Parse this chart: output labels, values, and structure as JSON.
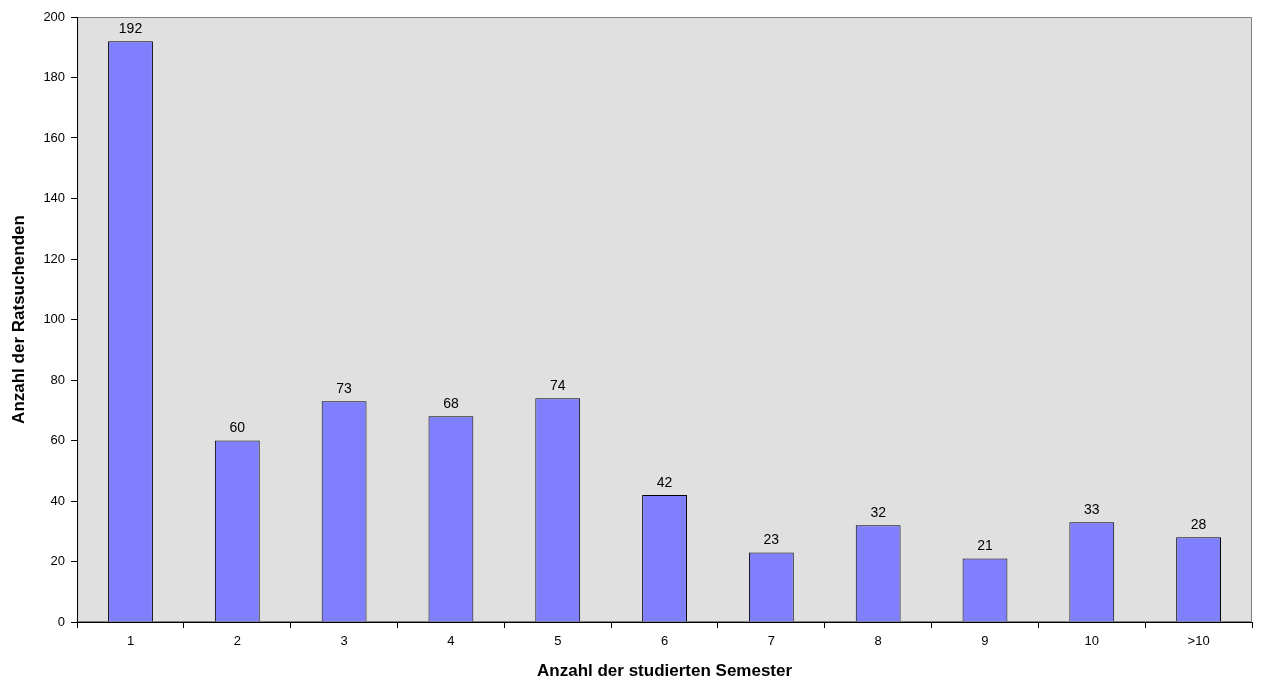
{
  "chart_data": {
    "type": "bar",
    "xlabel": "Anzahl der studierten Semester",
    "ylabel": "Anzahl der Ratsuchenden",
    "categories": [
      "1",
      "2",
      "3",
      "4",
      "5",
      "6",
      "7",
      "8",
      "9",
      "10",
      ">10"
    ],
    "values": [
      192,
      60,
      73,
      68,
      74,
      42,
      23,
      32,
      21,
      33,
      28
    ],
    "color": "#8080ff",
    "ylim": [
      0,
      200
    ],
    "yticks": [
      0,
      20,
      40,
      60,
      80,
      100,
      120,
      140,
      160,
      180,
      200
    ],
    "grid": false,
    "legend": false,
    "data_labels": true
  }
}
